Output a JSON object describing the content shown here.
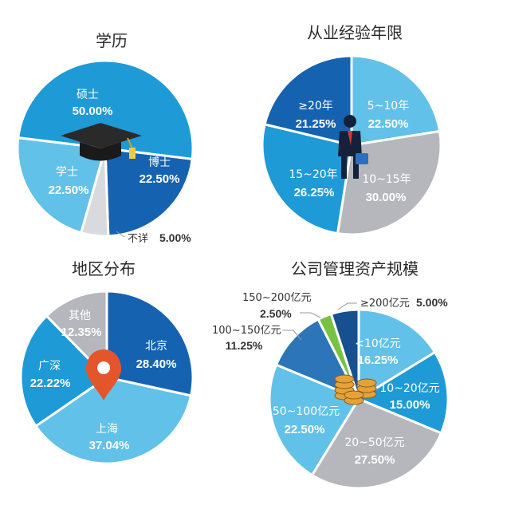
{
  "colors": {
    "navy": "#1563b0",
    "blue": "#1e9ad6",
    "light": "#62c1e8",
    "gray": "#b5b7bd",
    "steel": "#2b75b8",
    "green": "#7ac143",
    "dark": "#16508f"
  },
  "icons": [
    "graduation-cap-icon",
    "businessman-icon",
    "location-pin-icon",
    "coin-stack-icon"
  ],
  "chart_data": [
    {
      "type": "pie",
      "title": "学历",
      "slices": [
        {
          "label": "硕士",
          "value": 50.0,
          "value_text": "50.00%",
          "color": "#1e9ad6"
        },
        {
          "label": "博士",
          "value": 22.5,
          "value_text": "22.50%",
          "color": "#1563b0"
        },
        {
          "label": "不详",
          "value": 5.0,
          "value_text": "5.00%",
          "color": "#d9dadd",
          "external": true
        },
        {
          "label": "学士",
          "value": 22.5,
          "value_text": "22.50%",
          "color": "#62c1e8"
        }
      ]
    },
    {
      "type": "pie",
      "title": "从业经验年限",
      "slices": [
        {
          "label": "5~10年",
          "value": 22.5,
          "value_text": "22.50%",
          "color": "#62c1e8"
        },
        {
          "label": "10~15年",
          "value": 30.0,
          "value_text": "30.00%",
          "color": "#b5b7bd"
        },
        {
          "label": "15~20年",
          "value": 26.25,
          "value_text": "26.25%",
          "color": "#1e9ad6"
        },
        {
          "label": "≥20年",
          "value": 21.25,
          "value_text": "21.25%",
          "color": "#1563b0"
        }
      ]
    },
    {
      "type": "pie",
      "title": "地区分布",
      "slices": [
        {
          "label": "北京",
          "value": 28.4,
          "value_text": "28.40%",
          "color": "#1563b0"
        },
        {
          "label": "上海",
          "value": 37.04,
          "value_text": "37.04%",
          "color": "#62c1e8"
        },
        {
          "label": "广深",
          "value": 22.22,
          "value_text": "22.22%",
          "color": "#1e9ad6"
        },
        {
          "label": "其他",
          "value": 12.35,
          "value_text": "12.35%",
          "color": "#b5b7bd"
        }
      ]
    },
    {
      "type": "pie",
      "title": "公司管理资产规模",
      "slices": [
        {
          "label": "<10亿元",
          "value": 16.25,
          "value_text": "16.25%",
          "color": "#62c1e8"
        },
        {
          "label": "10~20亿元",
          "value": 15.0,
          "value_text": "15.00%",
          "color": "#1e9ad6"
        },
        {
          "label": "20~50亿元",
          "value": 27.5,
          "value_text": "27.50%",
          "color": "#b5b7bd"
        },
        {
          "label": "50~100亿元",
          "value": 22.5,
          "value_text": "22.50%",
          "color": "#62c1e8"
        },
        {
          "label": "100~150亿元",
          "value": 11.25,
          "value_text": "11.25%",
          "color": "#2b75b8",
          "external": true
        },
        {
          "label": "150~200亿元",
          "value": 2.5,
          "value_text": "2.50%",
          "color": "#7ac143",
          "external": true
        },
        {
          "label": "≥200亿元",
          "value": 5.0,
          "value_text": "5.00%",
          "color": "#16508f",
          "external": true
        }
      ]
    }
  ]
}
